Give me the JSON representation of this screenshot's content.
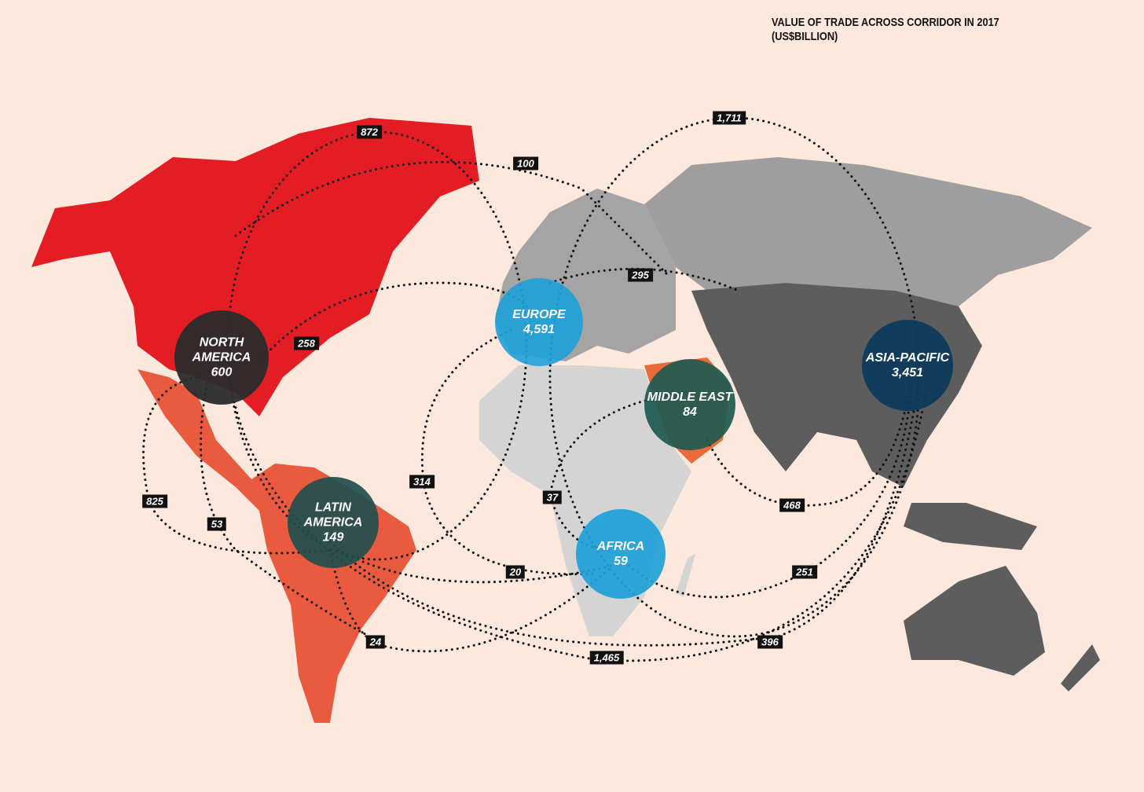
{
  "title": "VALUE OF TRADE ACROSS CORRIDOR IN 2017",
  "subtitle": "(US$BILLION)",
  "regions": [
    {
      "name": "NORTH AMERICA",
      "value": "600"
    },
    {
      "name": "EUROPE",
      "value": "4,591"
    },
    {
      "name": "MIDDLE EAST",
      "value": "84"
    },
    {
      "name": "ASIA-PACIFIC",
      "value": "3,451"
    },
    {
      "name": "LATIN AMERICA",
      "value": "149"
    },
    {
      "name": "AFRICA",
      "value": "59"
    }
  ],
  "corridors": [
    "872",
    "1,711",
    "100",
    "295",
    "258",
    "314",
    "37",
    "825",
    "53",
    "468",
    "20",
    "251",
    "396",
    "24",
    "1,465"
  ]
}
